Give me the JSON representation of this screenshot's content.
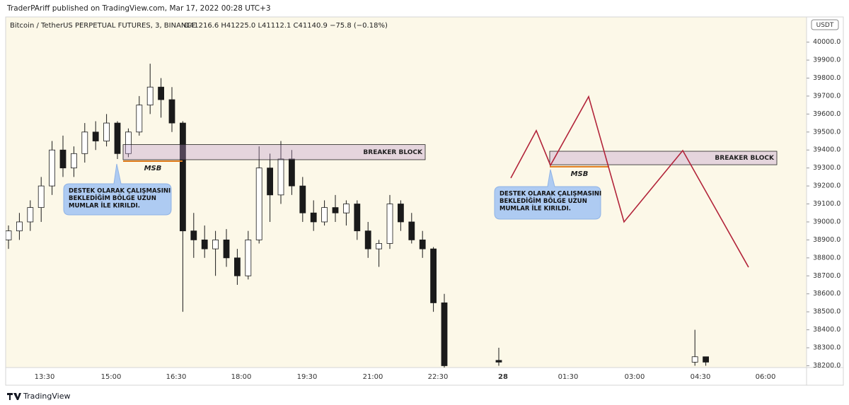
{
  "header": {
    "publisher": "TraderPAriff published on TradingView.com, Mar 17, 2022 00:28 UTC+3"
  },
  "chart_data": {
    "type": "candlestick",
    "symbol": "Bitcoin / TetherUS PERPETUAL FUTURES, 3, BINANCE",
    "ohlc_legend": "O41216.6 H41225.0 L41112.1 C41140.9 −75.8 (−0.18%)",
    "currency": "USDT",
    "ylim": [
      38190,
      40140
    ],
    "yticks": [
      {
        "value": 40000,
        "label": "40000.0"
      },
      {
        "value": 39900,
        "label": "39900.0"
      },
      {
        "value": 39800,
        "label": "39800.0"
      },
      {
        "value": 39700,
        "label": "39700.0"
      },
      {
        "value": 39600,
        "label": "39600.0"
      },
      {
        "value": 39500,
        "label": "39500.0"
      },
      {
        "value": 39400,
        "label": "39400.0"
      },
      {
        "value": 39300,
        "label": "39300.0"
      },
      {
        "value": 39200,
        "label": "39200.0"
      },
      {
        "value": 39100,
        "label": "39100.0"
      },
      {
        "value": 39000,
        "label": "39000.0"
      },
      {
        "value": 38900,
        "label": "38900.0"
      },
      {
        "value": 38800,
        "label": "38800.0"
      },
      {
        "value": 38700,
        "label": "38700.0"
      },
      {
        "value": 38600,
        "label": "38600.0"
      },
      {
        "value": 38500,
        "label": "38500.0"
      },
      {
        "value": 38400,
        "label": "38400.0"
      },
      {
        "value": 38300,
        "label": "38300.0"
      },
      {
        "value": 38200,
        "label": "38200.0"
      }
    ],
    "x_labels": [
      "13:30",
      "15:00",
      "16:30",
      "18:00",
      "19:30",
      "21:00",
      "22:30",
      "28",
      "01:30",
      "03:00",
      "04:30",
      "06:00"
    ],
    "ohlc": [
      [
        38900,
        38980,
        38850,
        38950
      ],
      [
        38950,
        39050,
        38900,
        39000
      ],
      [
        39000,
        39120,
        38950,
        39080
      ],
      [
        39080,
        39250,
        39000,
        39200
      ],
      [
        39200,
        39450,
        39150,
        39400
      ],
      [
        39400,
        39480,
        39250,
        39300
      ],
      [
        39300,
        39420,
        39250,
        39380
      ],
      [
        39380,
        39550,
        39330,
        39500
      ],
      [
        39500,
        39560,
        39400,
        39450
      ],
      [
        39450,
        39600,
        39420,
        39550
      ],
      [
        39550,
        39560,
        39350,
        39380
      ],
      [
        39380,
        39520,
        39360,
        39500
      ],
      [
        39500,
        39700,
        39480,
        39650
      ],
      [
        39650,
        39880,
        39600,
        39750
      ],
      [
        39750,
        39800,
        39580,
        39680
      ],
      [
        39680,
        39750,
        39500,
        39550
      ],
      [
        39550,
        39560,
        38500,
        38950
      ],
      [
        38950,
        39050,
        38800,
        38900
      ],
      [
        38900,
        38980,
        38800,
        38850
      ],
      [
        38850,
        38950,
        38700,
        38900
      ],
      [
        38900,
        38960,
        38750,
        38800
      ],
      [
        38800,
        38850,
        38650,
        38700
      ],
      [
        38700,
        38950,
        38680,
        38900
      ],
      [
        38900,
        39420,
        38880,
        39300
      ],
      [
        39300,
        39380,
        39000,
        39150
      ],
      [
        39150,
        39450,
        39100,
        39350
      ],
      [
        39350,
        39400,
        39150,
        39200
      ],
      [
        39200,
        39250,
        39000,
        39050
      ],
      [
        39050,
        39120,
        38950,
        39000
      ],
      [
        39000,
        39120,
        38980,
        39080
      ],
      [
        39080,
        39150,
        39000,
        39050
      ],
      [
        39050,
        39120,
        38980,
        39100
      ],
      [
        39100,
        39120,
        38900,
        38950
      ],
      [
        38950,
        39000,
        38800,
        38850
      ],
      [
        38850,
        38900,
        38750,
        38880
      ],
      [
        38880,
        39150,
        38850,
        39100
      ],
      [
        39100,
        39120,
        38950,
        39000
      ],
      [
        39000,
        39050,
        38880,
        38900
      ],
      [
        38900,
        38950,
        38800,
        38850
      ],
      [
        38850,
        38860,
        38500,
        38550
      ],
      [
        38550,
        38600,
        38180,
        38200
      ],
      null,
      null,
      null,
      null,
      [
        38230,
        38300,
        38200,
        38220
      ],
      null,
      null,
      null,
      null,
      null,
      null,
      null,
      null,
      null,
      null,
      null,
      null,
      null,
      null,
      null,
      null,
      null,
      [
        38220,
        38400,
        38200,
        38250
      ],
      [
        38250,
        38250,
        38200,
        38220
      ]
    ],
    "annotations": [
      {
        "label": "BREAKER BLOCK",
        "top": 39430,
        "bottom": 39346,
        "msb_label": "MSB",
        "msb": 39338,
        "callout": [
          "DESTEK OLARAK ÇALIŞMASINI",
          "BEKLEDİĞİM BÖLGE UZUN",
          "MUMLAR İLE KIRILDI."
        ]
      },
      {
        "label": "BREAKER BLOCK",
        "top": 39393,
        "bottom": 39318,
        "msb_label": "MSB",
        "msb": 39307,
        "callout": [
          "DESTEK OLARAK ÇALIŞMASINI",
          "BEKLEDİĞİM BÖLGE UZUN",
          "MUMLAR İLE KIRILDI."
        ]
      }
    ],
    "projection": [
      39244,
      39508,
      39315,
      39697,
      39000,
      39397,
      38748
    ],
    "projection_color": "#b2243a",
    "up_color": "#ffffff",
    "down_color": "#1a1a1a"
  },
  "footer": {
    "brand": "TradingView"
  }
}
